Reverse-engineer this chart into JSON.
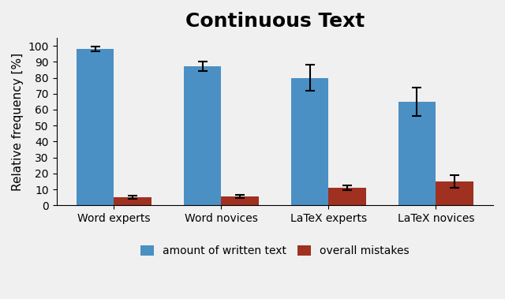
{
  "title": "Continuous Text",
  "ylabel": "Relative frequency [%]",
  "categories": [
    "Word experts",
    "Word novices",
    "LaTeX experts",
    "LaTeX novices"
  ],
  "blue_values": [
    98,
    87,
    80,
    65
  ],
  "red_values": [
    5,
    5.5,
    11,
    15
  ],
  "blue_errors": [
    1.5,
    3.0,
    8.0,
    9.0
  ],
  "red_errors": [
    1.0,
    1.0,
    1.5,
    4.0
  ],
  "blue_color": "#4A90C4",
  "red_color": "#A03020",
  "legend_blue": "amount of written text",
  "legend_red": "overall mistakes",
  "ylim": [
    0,
    105
  ],
  "yticks": [
    0,
    10,
    20,
    30,
    40,
    50,
    60,
    70,
    80,
    90,
    100
  ],
  "title_fontsize": 18,
  "label_fontsize": 11,
  "tick_fontsize": 10,
  "legend_fontsize": 10,
  "background_color": "#F0F0F0",
  "bar_width": 0.35
}
